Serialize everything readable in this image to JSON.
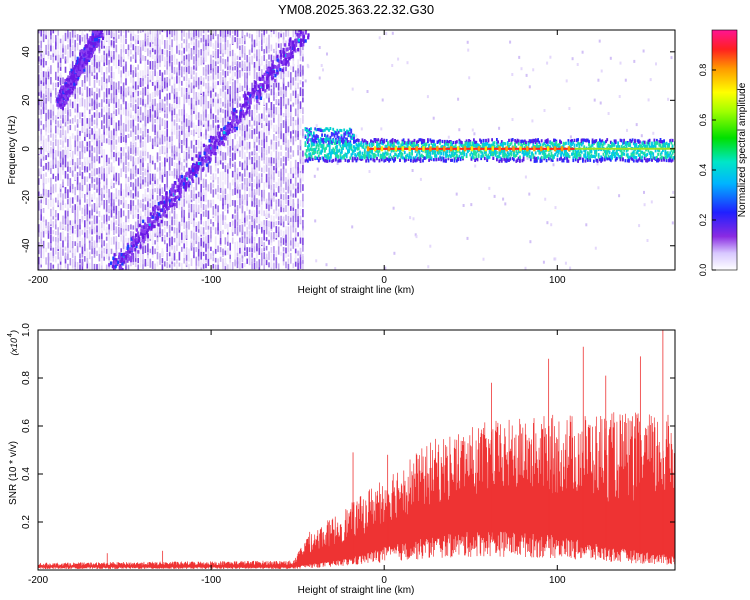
{
  "title": "YM08.2025.363.22.32.G30",
  "colors": {
    "snr_line": "#ee3333",
    "spectrogram_dense": "#6a18e6",
    "spectrogram_light": "#d9c8f7",
    "centerline": "#ff2020"
  },
  "chart_data": [
    {
      "name": "spectrogram",
      "type": "heatmap",
      "xlabel": "Height of straight line (km)",
      "ylabel": "Frequency (Hz)",
      "xlim": [
        -200,
        168
      ],
      "ylim": [
        -50,
        49
      ],
      "xticks": [
        -200,
        -100,
        0,
        100
      ],
      "yticks": [
        -40,
        -20,
        0,
        20,
        40
      ],
      "data_cutoff_x": -46,
      "trend_line": {
        "x_start": -158,
        "y_start": -50,
        "x_end": -46,
        "y_end": 49
      },
      "secondary_trend": {
        "x_start": -188,
        "y_start": 20,
        "x_end": -165,
        "y_end": 49
      },
      "carrier": {
        "frequency": 0,
        "x_start": -46,
        "x_end": 168,
        "peak_amplitude": 0.95
      },
      "colorbar": {
        "label": "Normalized spectral amplitude",
        "range": [
          0.0,
          0.96
        ],
        "ticks": [
          0.0,
          0.2,
          0.4,
          0.6,
          0.8
        ]
      }
    },
    {
      "name": "snr",
      "type": "line",
      "xlabel": "Height of straight line (km)",
      "ylabel": "SNR (10 * v/v)",
      "y_multiplier": "(x10",
      "y_multiplier_exp": "4",
      "xlim": [
        -200,
        168
      ],
      "ylim": [
        0,
        1.0
      ],
      "xticks": [
        -200,
        -100,
        0,
        100
      ],
      "yticks": [
        0.2,
        0.4,
        0.6,
        0.8,
        1.0
      ],
      "envelope": [
        {
          "x": -200,
          "base": 0.01,
          "peak": 0.03
        },
        {
          "x": -52,
          "base": 0.01,
          "peak": 0.04
        },
        {
          "x": -45,
          "base": 0.02,
          "peak": 0.15
        },
        {
          "x": -30,
          "base": 0.03,
          "peak": 0.22
        },
        {
          "x": -15,
          "base": 0.05,
          "peak": 0.3
        },
        {
          "x": 0,
          "base": 0.08,
          "peak": 0.4
        },
        {
          "x": 30,
          "base": 0.12,
          "peak": 0.55
        },
        {
          "x": 60,
          "base": 0.14,
          "peak": 0.62
        },
        {
          "x": 100,
          "base": 0.12,
          "peak": 0.65
        },
        {
          "x": 130,
          "base": 0.08,
          "peak": 0.66
        },
        {
          "x": 168,
          "base": 0.05,
          "peak": 0.65
        }
      ],
      "spikes": [
        {
          "x": -160,
          "y": 0.07
        },
        {
          "x": -128,
          "y": 0.08
        },
        {
          "x": -18,
          "y": 0.49
        },
        {
          "x": 2,
          "y": 0.48
        },
        {
          "x": 62,
          "y": 0.78
        },
        {
          "x": 95,
          "y": 0.88
        },
        {
          "x": 115,
          "y": 0.93
        },
        {
          "x": 128,
          "y": 0.81
        },
        {
          "x": 148,
          "y": 0.89
        },
        {
          "x": 161,
          "y": 1.0
        }
      ]
    }
  ]
}
